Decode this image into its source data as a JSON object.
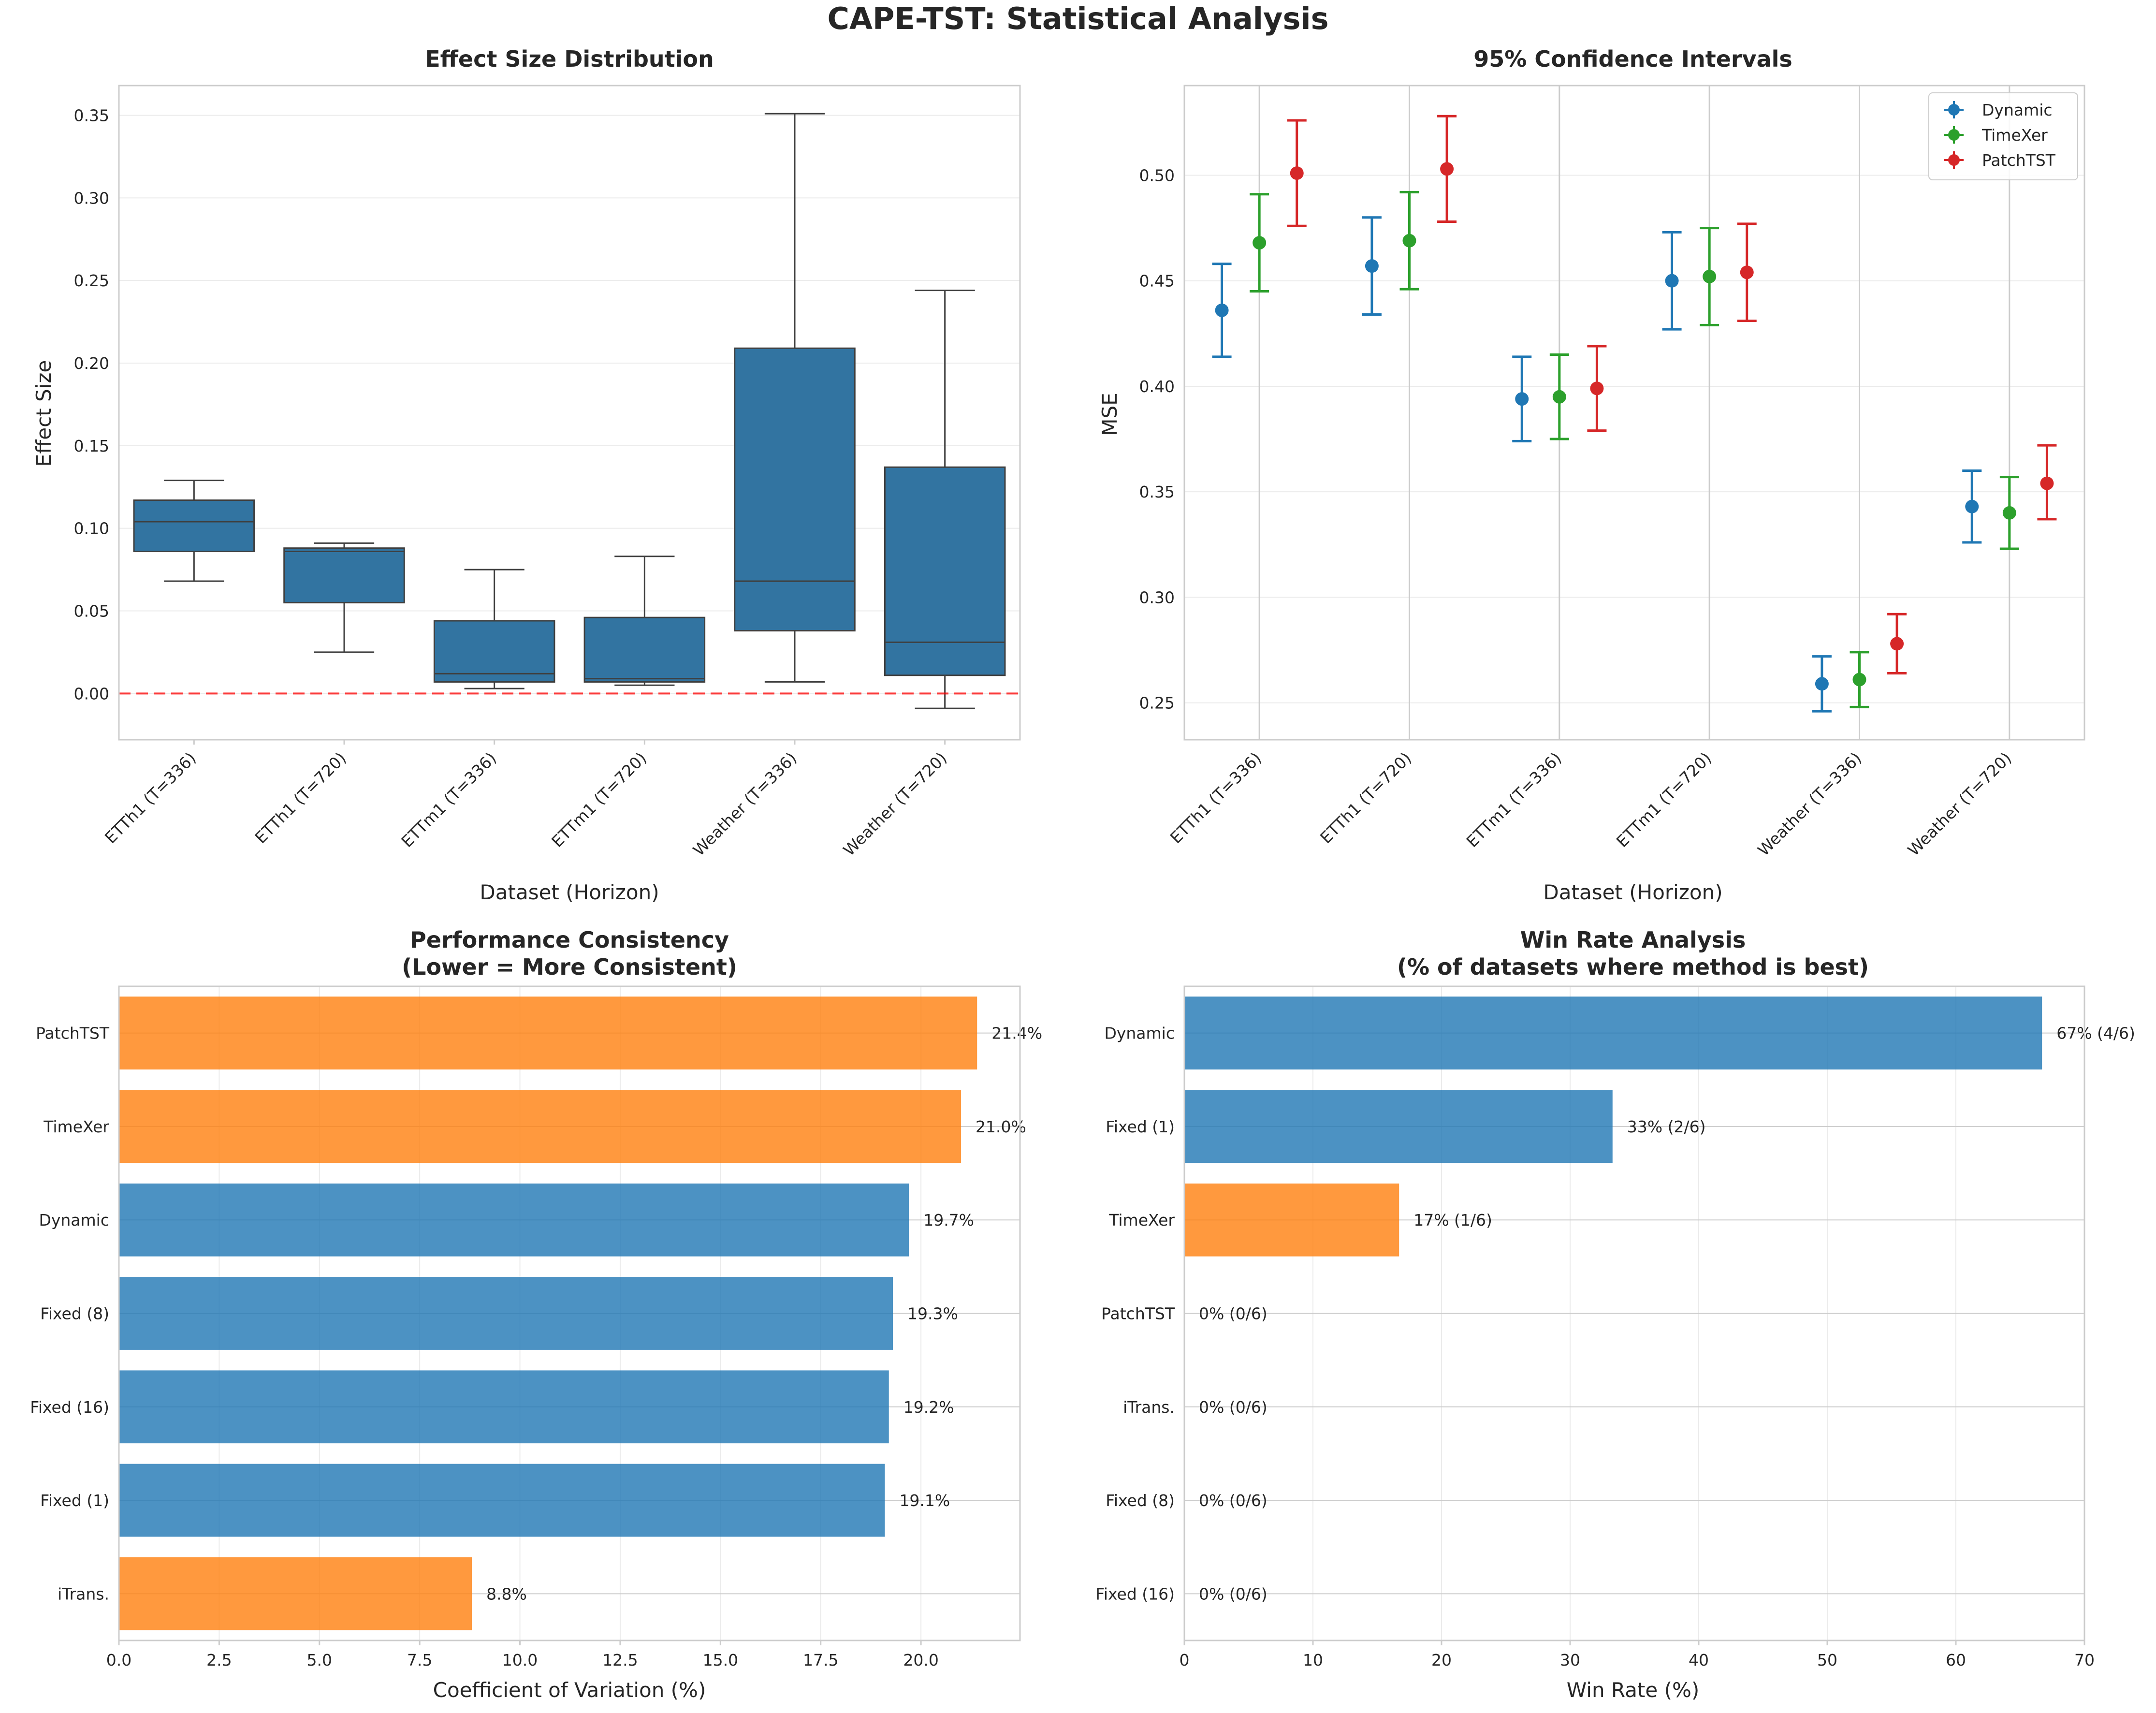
{
  "figure": {
    "title": "CAPE-TST: Statistical Analysis"
  },
  "colors": {
    "blue": "#1f77b4",
    "green": "#2ca02c",
    "red": "#d62728",
    "orange": "#ff7f0e",
    "box_fill": "#3274a1",
    "zero_line": "#ff0000",
    "grid": "#ebebeb",
    "spine": "#cccccc"
  },
  "chart_data": [
    {
      "type": "box",
      "title": "Effect Size Distribution",
      "xlabel": "Dataset (Horizon)",
      "ylabel": "Effect Size",
      "categories": [
        "ETTh1 (T=336)",
        "ETTh1 (T=720)",
        "ETTm1 (T=336)",
        "ETTm1 (T=720)",
        "Weather (T=336)",
        "Weather (T=720)"
      ],
      "boxes": [
        {
          "min": 0.068,
          "q1": 0.086,
          "median": 0.104,
          "q3": 0.117,
          "max": 0.129
        },
        {
          "min": 0.025,
          "q1": 0.055,
          "median": 0.086,
          "q3": 0.088,
          "max": 0.091
        },
        {
          "min": 0.003,
          "q1": 0.007,
          "median": 0.012,
          "q3": 0.044,
          "max": 0.075
        },
        {
          "min": 0.005,
          "q1": 0.007,
          "median": 0.009,
          "q3": 0.046,
          "max": 0.083
        },
        {
          "min": 0.007,
          "q1": 0.038,
          "median": 0.068,
          "q3": 0.209,
          "max": 0.351
        },
        {
          "min": -0.009,
          "q1": 0.011,
          "median": 0.031,
          "q3": 0.137,
          "max": 0.244
        }
      ],
      "ylim": [
        -0.028,
        0.368
      ],
      "yticks": [
        "0.00",
        "0.05",
        "0.10",
        "0.15",
        "0.20",
        "0.25",
        "0.30",
        "0.35"
      ],
      "reference_line": 0,
      "grid": true
    },
    {
      "type": "errorbar",
      "title": "95% Confidence Intervals",
      "xlabel": "Dataset (Horizon)",
      "ylabel": "MSE",
      "categories": [
        "ETTh1 (T=336)",
        "ETTh1 (T=720)",
        "ETTm1 (T=336)",
        "ETTm1 (T=720)",
        "Weather (T=336)",
        "Weather (T=720)"
      ],
      "series": [
        {
          "name": "Dynamic",
          "color": "#1f77b4",
          "values": [
            0.436,
            0.457,
            0.394,
            0.45,
            0.259,
            0.343
          ],
          "lower": [
            0.414,
            0.434,
            0.374,
            0.427,
            0.246,
            0.326
          ],
          "upper": [
            0.458,
            0.48,
            0.414,
            0.473,
            0.272,
            0.36
          ]
        },
        {
          "name": "TimeXer",
          "color": "#2ca02c",
          "values": [
            0.468,
            0.469,
            0.395,
            0.452,
            0.261,
            0.34
          ],
          "lower": [
            0.445,
            0.446,
            0.375,
            0.429,
            0.248,
            0.323
          ],
          "upper": [
            0.491,
            0.492,
            0.415,
            0.475,
            0.274,
            0.357
          ]
        },
        {
          "name": "PatchTST",
          "color": "#d62728",
          "values": [
            0.501,
            0.503,
            0.399,
            0.454,
            0.278,
            0.354
          ],
          "lower": [
            0.476,
            0.478,
            0.379,
            0.431,
            0.264,
            0.337
          ],
          "upper": [
            0.526,
            0.528,
            0.419,
            0.477,
            0.292,
            0.372
          ]
        }
      ],
      "ylim": [
        0.2325,
        0.5425
      ],
      "yticks": [
        "0.25",
        "0.30",
        "0.35",
        "0.40",
        "0.45",
        "0.50"
      ],
      "legend": "top-right",
      "grid": true
    },
    {
      "type": "bar",
      "orientation": "horizontal",
      "title": "Performance Consistency",
      "subtitle": "(Lower = More Consistent)",
      "xlabel": "Coefficient of Variation (%)",
      "categories": [
        "PatchTST",
        "TimeXer",
        "Dynamic",
        "Fixed (8)",
        "Fixed (16)",
        "Fixed (1)",
        "iTrans."
      ],
      "values": [
        21.4,
        21.0,
        19.7,
        19.3,
        19.2,
        19.1,
        8.8
      ],
      "labels": [
        "21.4%",
        "21.0%",
        "19.7%",
        "19.3%",
        "19.2%",
        "19.1%",
        "8.8%"
      ],
      "bar_colors": [
        "#ff7f0e",
        "#ff7f0e",
        "#1f77b4",
        "#1f77b4",
        "#1f77b4",
        "#1f77b4",
        "#ff7f0e"
      ],
      "xlim": [
        0,
        22.47
      ],
      "xticks": [
        "0.0",
        "2.5",
        "5.0",
        "7.5",
        "10.0",
        "12.5",
        "15.0",
        "17.5",
        "20.0"
      ],
      "grid": true
    },
    {
      "type": "bar",
      "orientation": "horizontal",
      "title": "Win Rate Analysis",
      "subtitle": "(% of datasets where method is best)",
      "xlabel": "Win Rate (%)",
      "categories": [
        "Dynamic",
        "Fixed (1)",
        "TimeXer",
        "PatchTST",
        "iTrans.",
        "Fixed (8)",
        "Fixed (16)"
      ],
      "values": [
        66.7,
        33.3,
        16.7,
        0,
        0,
        0,
        0
      ],
      "labels": [
        "67% (4/6)",
        "33% (2/6)",
        "17% (1/6)",
        "0% (0/6)",
        "0% (0/6)",
        "0% (0/6)",
        "0% (0/6)"
      ],
      "bar_colors": [
        "#1f77b4",
        "#1f77b4",
        "#ff7f0e",
        "#1f77b4",
        "#ff7f0e",
        "#1f77b4",
        "#1f77b4"
      ],
      "xlim": [
        0,
        70
      ],
      "xticks": [
        "0",
        "10",
        "20",
        "30",
        "40",
        "50",
        "60",
        "70"
      ],
      "grid": true
    }
  ]
}
